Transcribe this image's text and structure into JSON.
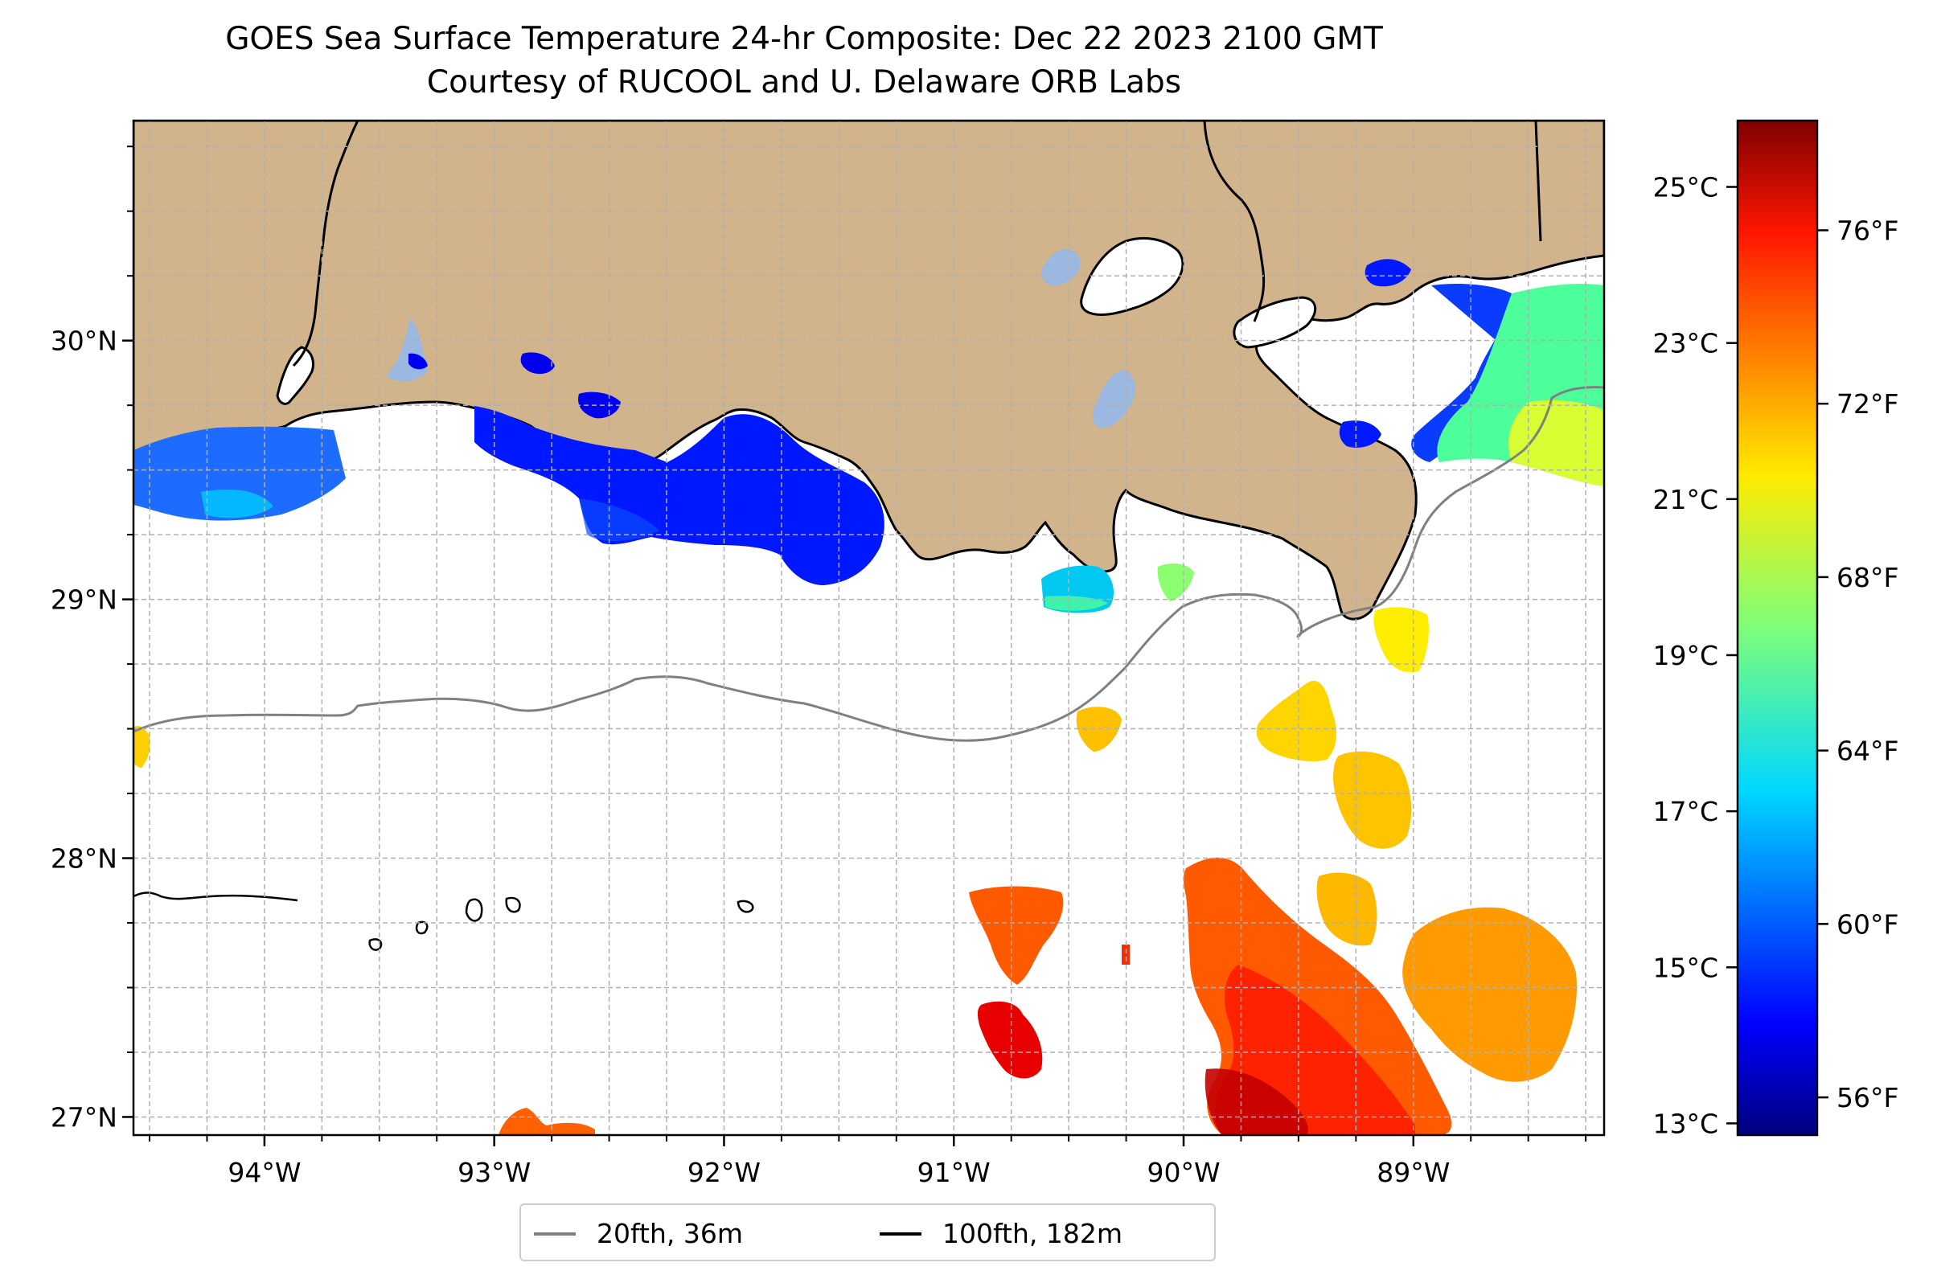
{
  "title": "GOES Sea Surface Temperature 24-hr Composite: Dec 22 2023 2100 GMT",
  "subtitle": "Courtesy of RUCOOL and U. Delaware ORB Labs",
  "map": {
    "lon_range": [
      -94.57,
      -88.17
    ],
    "lat_range": [
      26.93,
      30.85
    ],
    "lon_ticks": [
      {
        "value": -94,
        "label": "94°W"
      },
      {
        "value": -93,
        "label": "93°W"
      },
      {
        "value": -92,
        "label": "92°W"
      },
      {
        "value": -91,
        "label": "91°W"
      },
      {
        "value": -90,
        "label": "90°W"
      },
      {
        "value": -89,
        "label": "89°W"
      }
    ],
    "lat_ticks": [
      {
        "value": 30,
        "label": "30°N"
      },
      {
        "value": 29,
        "label": "29°N"
      },
      {
        "value": 28,
        "label": "28°N"
      },
      {
        "value": 27,
        "label": "27°N"
      }
    ],
    "grid": true,
    "land_color": "#d2b48c",
    "lake_color": "#9ab8e0"
  },
  "colorbar": {
    "celsius_range": [
      12.85,
      25.85
    ],
    "celsius_ticks": [
      {
        "value": 13,
        "label": "13°C"
      },
      {
        "value": 15,
        "label": "15°C"
      },
      {
        "value": 17,
        "label": "17°C"
      },
      {
        "value": 19,
        "label": "19°C"
      },
      {
        "value": 21,
        "label": "21°C"
      },
      {
        "value": 23,
        "label": "23°C"
      },
      {
        "value": 25,
        "label": "25°C"
      }
    ],
    "fahrenheit_ticks": [
      {
        "value": 56,
        "label": "56°F"
      },
      {
        "value": 60,
        "label": "60°F"
      },
      {
        "value": 64,
        "label": "64°F"
      },
      {
        "value": 68,
        "label": "68°F"
      },
      {
        "value": 72,
        "label": "72°F"
      },
      {
        "value": 76,
        "label": "76°F"
      }
    ],
    "colormap": "jet"
  },
  "legend": {
    "items": [
      {
        "label": "20fth, 36m",
        "color": "#808080"
      },
      {
        "label": "100fth, 182m",
        "color": "#000000"
      }
    ]
  }
}
